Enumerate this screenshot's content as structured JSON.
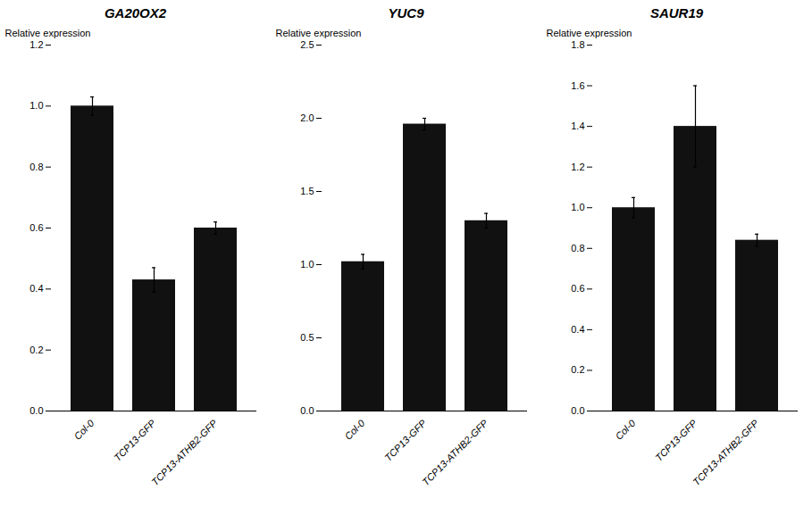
{
  "chart_data": [
    {
      "type": "bar",
      "title": "GA20OX2",
      "y_label": "Relative expression",
      "categories": [
        "Col-0",
        "TCP13-GFP",
        "TCP13-ATHB2-GFP"
      ],
      "values": [
        1.0,
        0.43,
        0.6
      ],
      "errors": [
        0.03,
        0.04,
        0.02
      ],
      "color": "#111111",
      "ylim": [
        0,
        1.2
      ],
      "yticks": [
        {
          "value": 0,
          "label": "0.0"
        },
        0.2,
        0.4,
        0.6,
        0.8,
        {
          "value": 1,
          "label": "1.0"
        },
        1.2
      ],
      "grid": false
    },
    {
      "type": "bar",
      "title": "YUC9",
      "y_label": "Relative expression",
      "categories": [
        "Col-0",
        "TCP13-GFP",
        "TCP13-ATHB2-GFP"
      ],
      "values": [
        1.02,
        1.96,
        1.3
      ],
      "errors": [
        0.05,
        0.04,
        0.05
      ],
      "color": "#111111",
      "ylim": [
        0,
        2.5
      ],
      "yticks": [
        {
          "value": 0,
          "label": "0.0"
        },
        0.5,
        {
          "value": 1,
          "label": "1.0"
        },
        1.5,
        {
          "value": 2,
          "label": "2.0"
        },
        2.5
      ],
      "grid": false
    },
    {
      "type": "bar",
      "title": "SAUR19",
      "y_label": "Relative expression",
      "categories": [
        "Col-0",
        "TCP13-GFP",
        "TCP13-ATHB2-GFP"
      ],
      "values": [
        1.0,
        1.4,
        0.84
      ],
      "errors": [
        0.05,
        0.2,
        0.03
      ],
      "color": "#111111",
      "ylim": [
        0,
        1.8
      ],
      "yticks": [
        {
          "value": 0,
          "label": "0.0"
        },
        0.2,
        0.4,
        0.6,
        0.8,
        {
          "value": 1,
          "label": "1.0"
        },
        1.2,
        1.4,
        1.6,
        1.8
      ],
      "grid": false
    }
  ]
}
